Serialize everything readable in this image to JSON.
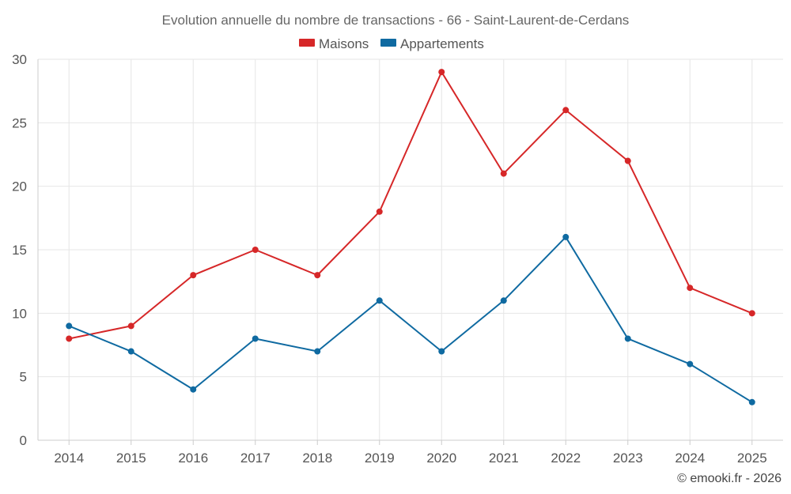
{
  "chart_data": {
    "type": "line",
    "title": "Evolution annuelle du nombre de transactions - 66 - Saint-Laurent-de-Cerdans",
    "categories": [
      "2014",
      "2015",
      "2016",
      "2017",
      "2018",
      "2019",
      "2020",
      "2021",
      "2022",
      "2023",
      "2024",
      "2025"
    ],
    "series": [
      {
        "name": "Maisons",
        "color": "#d62728",
        "values": [
          8,
          9,
          13,
          15,
          13,
          18,
          29,
          21,
          26,
          22,
          12,
          10
        ]
      },
      {
        "name": "Appartements",
        "color": "#0f6aa1",
        "values": [
          9,
          7,
          4,
          8,
          7,
          11,
          7,
          11,
          16,
          8,
          6,
          3
        ]
      }
    ],
    "ylim": [
      0,
      30
    ],
    "yticks": [
      0,
      5,
      10,
      15,
      20,
      25,
      30
    ],
    "grid": true,
    "legend_position": "top-center",
    "xlabel": "",
    "ylabel": ""
  },
  "credit": "© emooki.fr - 2026"
}
